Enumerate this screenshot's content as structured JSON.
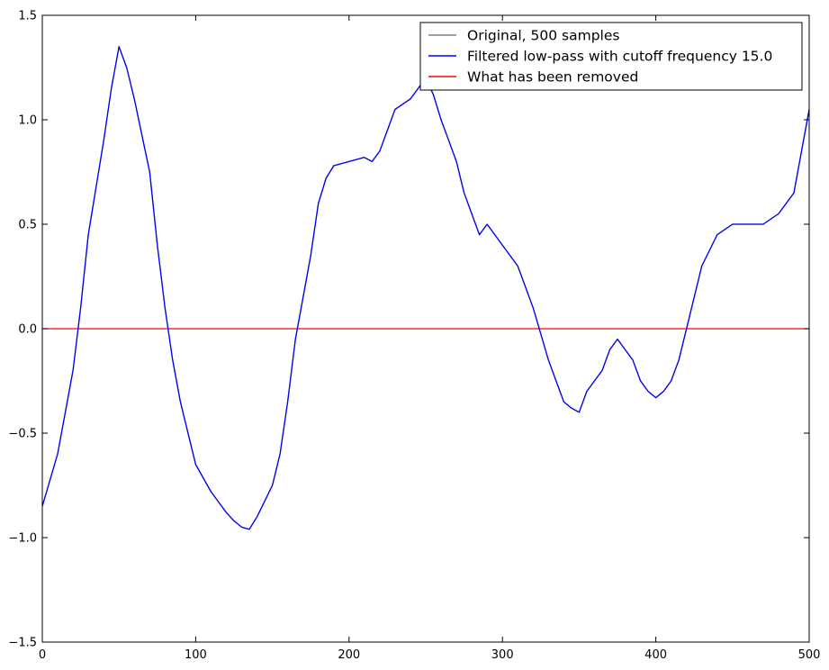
{
  "chart_data": {
    "type": "line",
    "title": "",
    "xlabel": "",
    "ylabel": "",
    "xlim": [
      0,
      500
    ],
    "ylim": [
      -1.5,
      1.5
    ],
    "grid": false,
    "legend_placement": "top-right",
    "x_ticks": [
      {
        "value": 0,
        "label": "0"
      },
      {
        "value": 100,
        "label": "100"
      },
      {
        "value": 200,
        "label": "200"
      },
      {
        "value": 300,
        "label": "300"
      },
      {
        "value": 400,
        "label": "400"
      },
      {
        "value": 500,
        "label": "500"
      }
    ],
    "y_ticks": [
      {
        "value": -1.5,
        "label": "−1.5"
      },
      {
        "value": -1.0,
        "label": "−1.0"
      },
      {
        "value": -0.5,
        "label": "−0.5"
      },
      {
        "value": 0.0,
        "label": "0.0"
      },
      {
        "value": 0.5,
        "label": "0.5"
      },
      {
        "value": 1.0,
        "label": "1.0"
      },
      {
        "value": 1.5,
        "label": "1.5"
      }
    ],
    "x": [
      0,
      10,
      20,
      25,
      30,
      40,
      45,
      50,
      55,
      60,
      70,
      75,
      80,
      85,
      90,
      100,
      110,
      120,
      125,
      130,
      135,
      140,
      150,
      155,
      160,
      165,
      170,
      175,
      180,
      185,
      190,
      200,
      210,
      215,
      220,
      225,
      230,
      240,
      245,
      250,
      255,
      260,
      265,
      270,
      275,
      280,
      285,
      290,
      300,
      310,
      320,
      330,
      335,
      340,
      345,
      350,
      355,
      360,
      365,
      370,
      375,
      380,
      385,
      390,
      395,
      400,
      405,
      410,
      415,
      420,
      425,
      430,
      440,
      450,
      460,
      470,
      480,
      490,
      495,
      500
    ],
    "series": [
      {
        "name": "Original, 500 samples",
        "color": "#808080",
        "values": [
          -0.85,
          -0.6,
          -0.2,
          0.1,
          0.45,
          0.9,
          1.15,
          1.35,
          1.25,
          1.1,
          0.75,
          0.4,
          0.1,
          -0.15,
          -0.35,
          -0.65,
          -0.78,
          -0.88,
          -0.92,
          -0.95,
          -0.96,
          -0.9,
          -0.75,
          -0.6,
          -0.35,
          -0.05,
          0.15,
          0.35,
          0.6,
          0.72,
          0.78,
          0.8,
          0.82,
          0.8,
          0.85,
          0.95,
          1.05,
          1.1,
          1.15,
          1.2,
          1.12,
          1.0,
          0.9,
          0.8,
          0.65,
          0.55,
          0.45,
          0.5,
          0.4,
          0.3,
          0.1,
          -0.15,
          -0.25,
          -0.35,
          -0.38,
          -0.4,
          -0.3,
          -0.25,
          -0.2,
          -0.1,
          -0.05,
          -0.1,
          -0.15,
          -0.25,
          -0.3,
          -0.33,
          -0.3,
          -0.25,
          -0.15,
          0.0,
          0.15,
          0.3,
          0.45,
          0.5,
          0.5,
          0.5,
          0.55,
          0.65,
          0.85,
          1.05
        ]
      },
      {
        "name": "Filtered low-pass with cutoff frequency 15.0",
        "color": "#0000ff",
        "values": [
          -0.85,
          -0.6,
          -0.2,
          0.1,
          0.45,
          0.9,
          1.15,
          1.35,
          1.25,
          1.1,
          0.75,
          0.4,
          0.1,
          -0.15,
          -0.35,
          -0.65,
          -0.78,
          -0.88,
          -0.92,
          -0.95,
          -0.96,
          -0.9,
          -0.75,
          -0.6,
          -0.35,
          -0.05,
          0.15,
          0.35,
          0.6,
          0.72,
          0.78,
          0.8,
          0.82,
          0.8,
          0.85,
          0.95,
          1.05,
          1.1,
          1.15,
          1.2,
          1.12,
          1.0,
          0.9,
          0.8,
          0.65,
          0.55,
          0.45,
          0.5,
          0.4,
          0.3,
          0.1,
          -0.15,
          -0.25,
          -0.35,
          -0.38,
          -0.4,
          -0.3,
          -0.25,
          -0.2,
          -0.1,
          -0.05,
          -0.1,
          -0.15,
          -0.25,
          -0.3,
          -0.33,
          -0.3,
          -0.25,
          -0.15,
          0.0,
          0.15,
          0.3,
          0.45,
          0.5,
          0.5,
          0.5,
          0.55,
          0.65,
          0.85,
          1.05
        ]
      },
      {
        "name": "What has been removed",
        "color": "#ff0000",
        "values": [
          0,
          0,
          0,
          0,
          0,
          0,
          0,
          0,
          0,
          0,
          0,
          0,
          0,
          0,
          0,
          0,
          0,
          0,
          0,
          0,
          0,
          0,
          0,
          0,
          0,
          0,
          0,
          0,
          0,
          0,
          0,
          0,
          0,
          0,
          0,
          0,
          0,
          0,
          0,
          0,
          0,
          0,
          0,
          0,
          0,
          0,
          0,
          0,
          0,
          0,
          0,
          0,
          0,
          0,
          0,
          0,
          0,
          0,
          0,
          0,
          0,
          0,
          0,
          0,
          0,
          0,
          0,
          0,
          0,
          0,
          0,
          0,
          0,
          0,
          0,
          0,
          0,
          0,
          0,
          0
        ]
      }
    ]
  }
}
